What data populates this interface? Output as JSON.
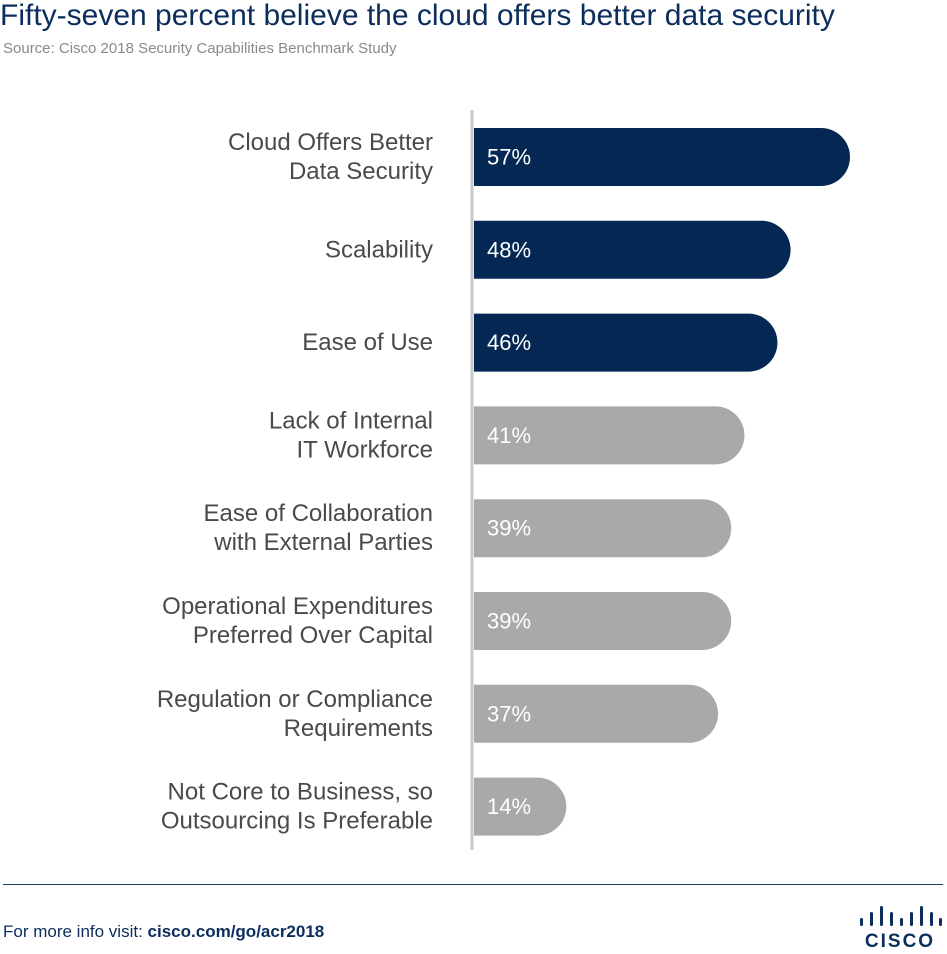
{
  "title": "Fifty-seven percent believe the cloud offers better data security",
  "subtitle": "Source: Cisco 2018 Security Capabilities Benchmark Study",
  "chart_data": {
    "type": "bar",
    "orientation": "horizontal",
    "value_unit": "%",
    "xlim": [
      0,
      57
    ],
    "grid": false,
    "categories": [
      [
        "Cloud Offers Better",
        "Data Security"
      ],
      [
        "Scalability"
      ],
      [
        "Ease of Use"
      ],
      [
        "Lack of Internal",
        "IT Workforce"
      ],
      [
        "Ease of Collaboration",
        "with External Parties"
      ],
      [
        "Operational Expenditures",
        "Preferred Over Capital"
      ],
      [
        "Regulation or Compliance",
        "Requirements"
      ],
      [
        "Not Core to Business, so",
        "Outsourcing Is Preferable"
      ]
    ],
    "values": [
      57,
      48,
      46,
      41,
      39,
      39,
      37,
      14
    ],
    "value_labels": [
      "57%",
      "48%",
      "46%",
      "41%",
      "39%",
      "39%",
      "37%",
      "14%"
    ],
    "highlight_count": 3,
    "colors": {
      "highlight": "#042853",
      "default": "#a8a9ab",
      "axis": "#c8c8c8"
    }
  },
  "footer": {
    "prefix": "For more info visit: ",
    "url": "cisco.com/go/acr2018"
  },
  "logo": {
    "wordmark": "CISCO",
    "icon": "cisco-bridge-icon"
  }
}
